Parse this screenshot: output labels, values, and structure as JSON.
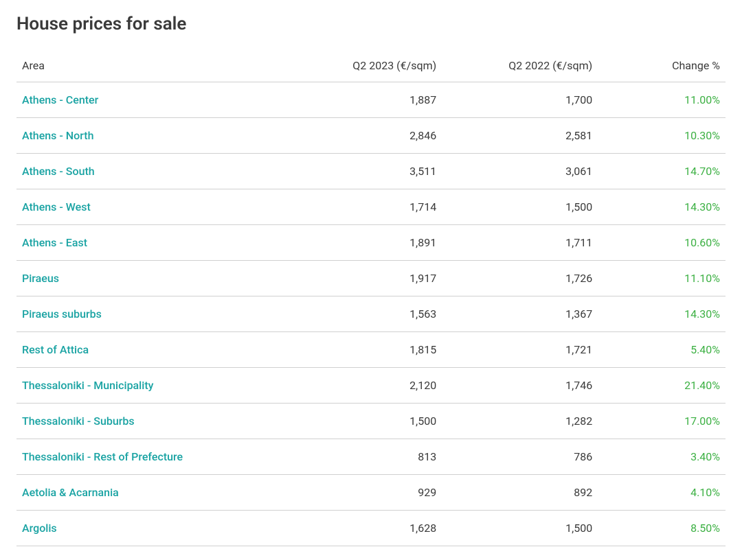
{
  "title": "House prices for sale",
  "table": {
    "columns": [
      {
        "key": "area",
        "label": "Area",
        "align": "left"
      },
      {
        "key": "q2_2023",
        "label": "Q2 2023 (€/sqm)",
        "align": "right"
      },
      {
        "key": "q2_2022",
        "label": "Q2 2022 (€/sqm)",
        "align": "right"
      },
      {
        "key": "change",
        "label": "Change %",
        "align": "right"
      }
    ],
    "rows": [
      {
        "area": "Athens - Center",
        "q2_2023": "1,887",
        "q2_2022": "1,700",
        "change": "11.00%"
      },
      {
        "area": "Athens - North",
        "q2_2023": "2,846",
        "q2_2022": "2,581",
        "change": "10.30%"
      },
      {
        "area": "Athens - South",
        "q2_2023": "3,511",
        "q2_2022": "3,061",
        "change": "14.70%"
      },
      {
        "area": "Athens - West",
        "q2_2023": "1,714",
        "q2_2022": "1,500",
        "change": "14.30%"
      },
      {
        "area": "Athens - East",
        "q2_2023": "1,891",
        "q2_2022": "1,711",
        "change": "10.60%"
      },
      {
        "area": "Piraeus",
        "q2_2023": "1,917",
        "q2_2022": "1,726",
        "change": "11.10%"
      },
      {
        "area": "Piraeus suburbs",
        "q2_2023": "1,563",
        "q2_2022": "1,367",
        "change": "14.30%"
      },
      {
        "area": "Rest of Attica",
        "q2_2023": "1,815",
        "q2_2022": "1,721",
        "change": "5.40%"
      },
      {
        "area": "Thessaloniki - Municipality",
        "q2_2023": "2,120",
        "q2_2022": "1,746",
        "change": "21.40%"
      },
      {
        "area": "Thessaloniki - Suburbs",
        "q2_2023": "1,500",
        "q2_2022": "1,282",
        "change": "17.00%"
      },
      {
        "area": "Thessaloniki - Rest of Prefecture",
        "q2_2023": "813",
        "q2_2022": "786",
        "change": "3.40%"
      },
      {
        "area": "Aetolia & Acarnania",
        "q2_2023": "929",
        "q2_2022": "892",
        "change": "4.10%"
      },
      {
        "area": "Argolis",
        "q2_2023": "1,628",
        "q2_2022": "1,500",
        "change": "8.50%"
      }
    ]
  },
  "style": {
    "background_color": "#ffffff",
    "text_color": "#3a3a3a",
    "link_color": "#1aa3a3",
    "positive_change_color": "#3cb043",
    "border_color": "#d0d0d0",
    "title_fontsize": 26,
    "body_fontsize": 16,
    "column_widths_pct": [
      38,
      22,
      22,
      18
    ]
  }
}
